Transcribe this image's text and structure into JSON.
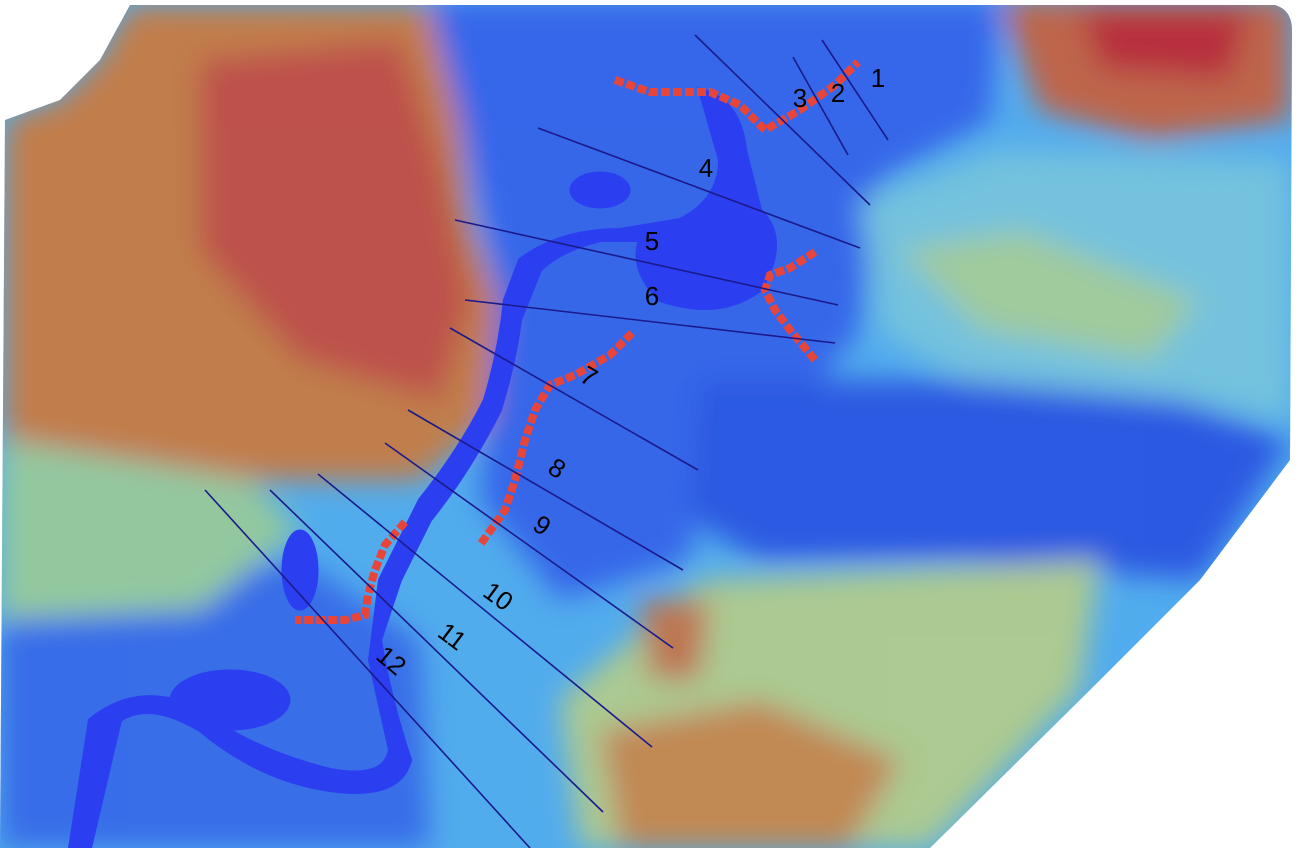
{
  "transects": [
    {
      "label": "1"
    },
    {
      "label": "2"
    },
    {
      "label": "3"
    },
    {
      "label": "4"
    },
    {
      "label": "5"
    },
    {
      "label": "6"
    },
    {
      "label": "7"
    },
    {
      "label": "8"
    },
    {
      "label": "9"
    },
    {
      "label": "10"
    },
    {
      "label": "11"
    },
    {
      "label": "12"
    }
  ]
}
